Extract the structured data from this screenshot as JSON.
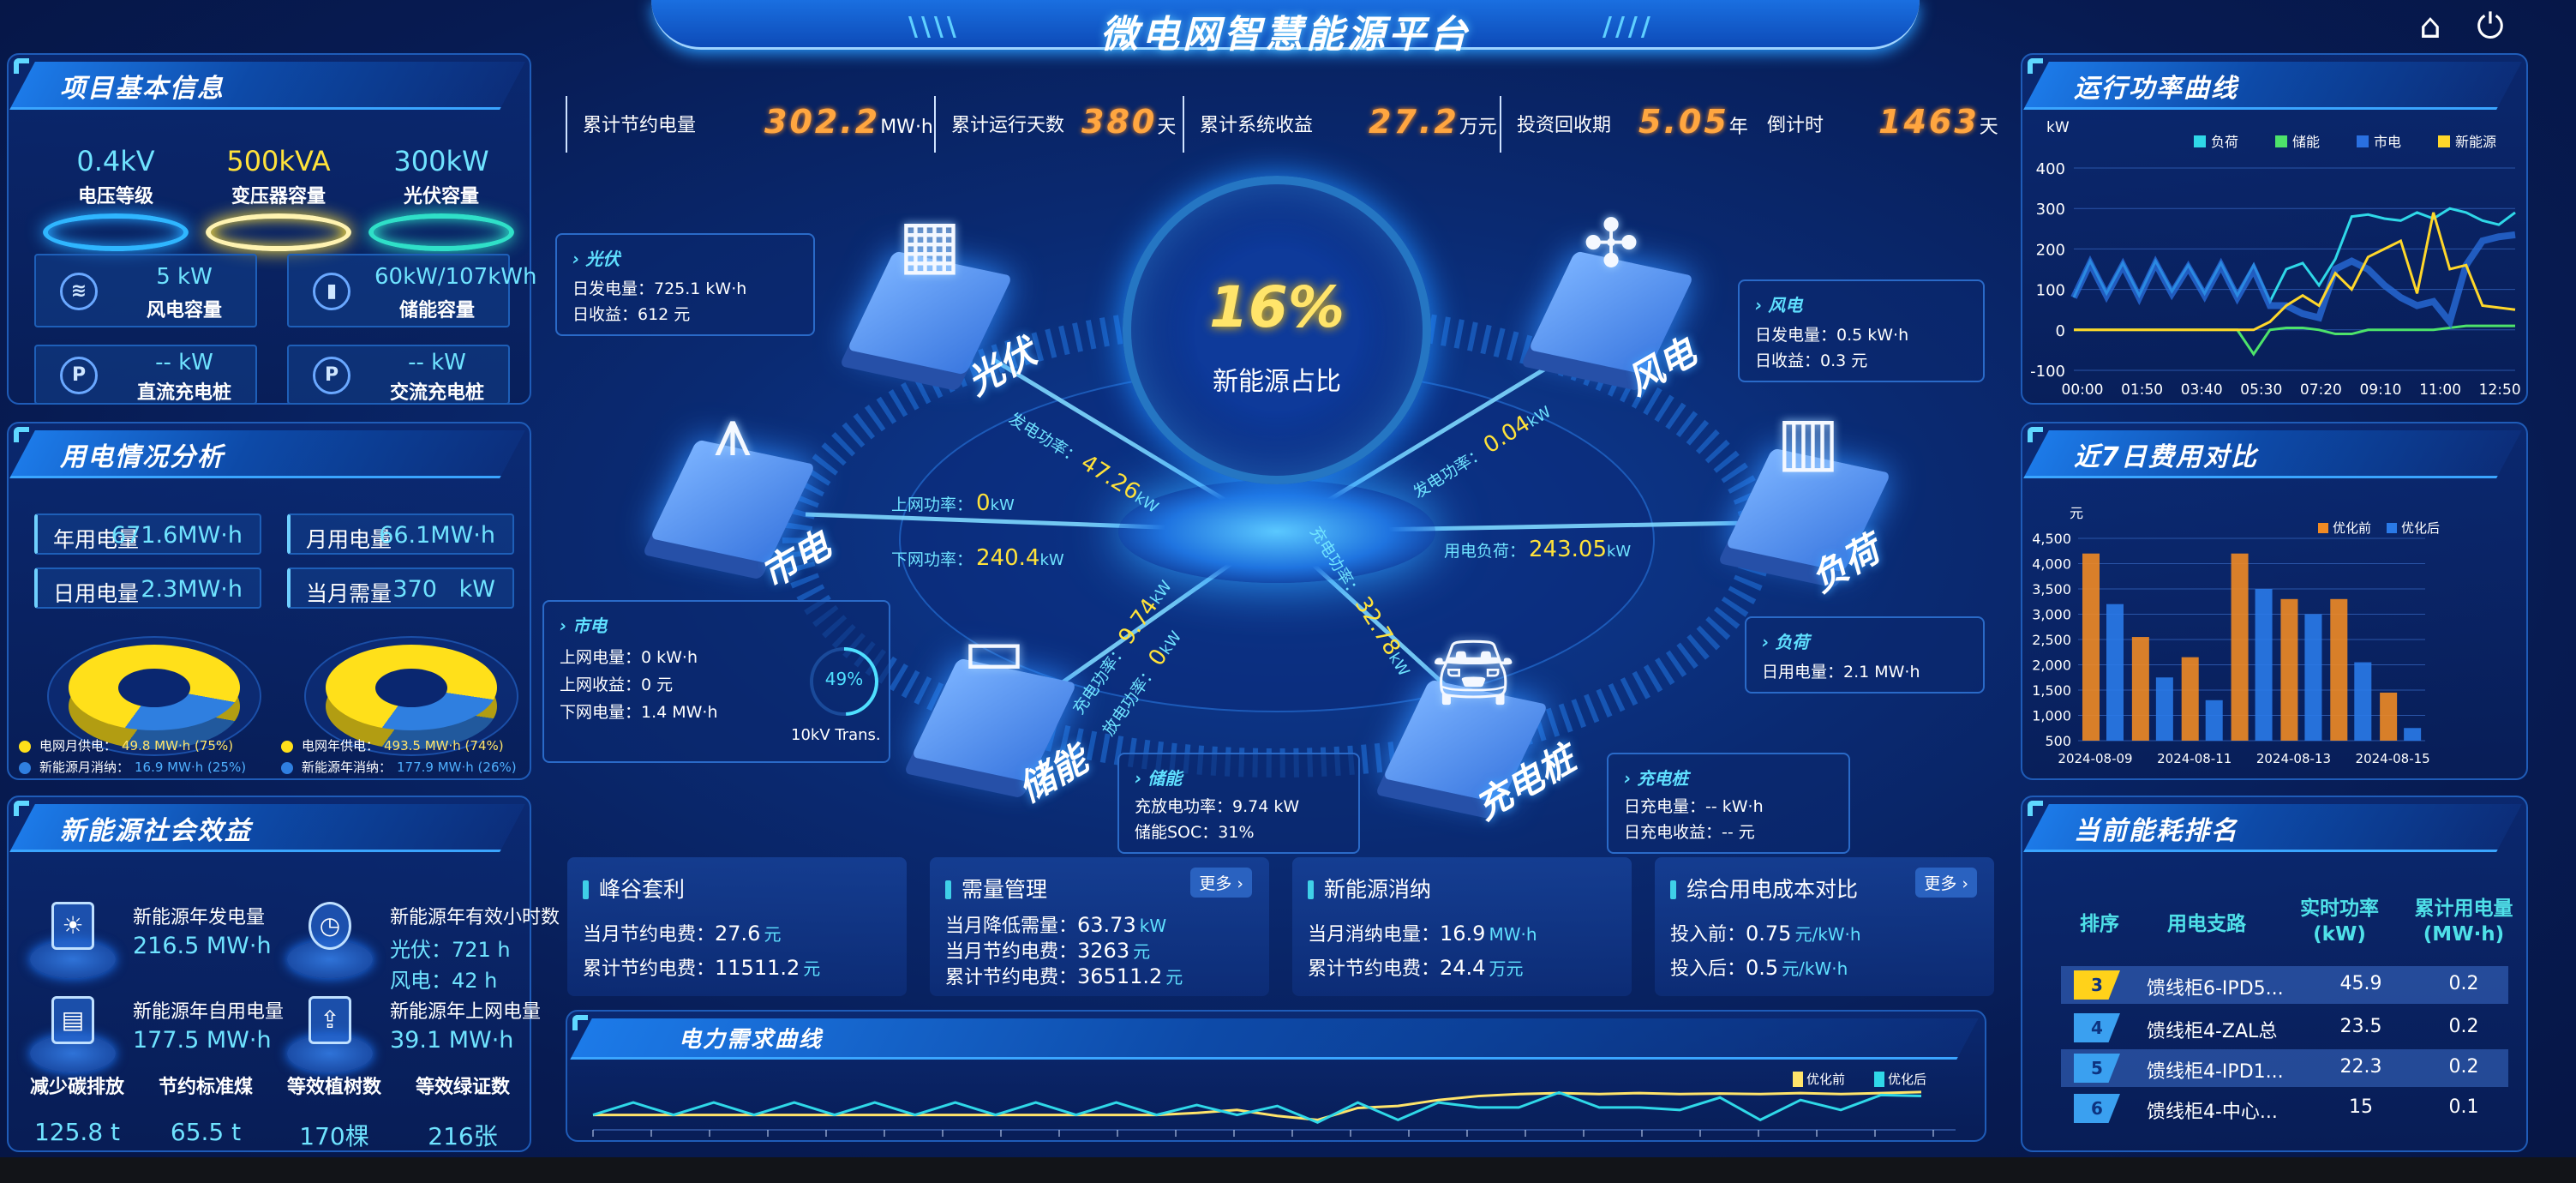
{
  "header": {
    "title": "微电网智慧能源平台",
    "home_icon": "home-icon",
    "power_icon": "power-icon"
  },
  "project_info": {
    "title": "项目基本信息",
    "capacities": [
      {
        "value": "0.4kV",
        "label": "电压等级",
        "color": "#2fb6ff"
      },
      {
        "value": "500kVA",
        "label": "变压器容量",
        "color": "#ffe23a"
      },
      {
        "value": "300kW",
        "label": "光伏容量",
        "color": "#2fe0c8"
      }
    ],
    "cells": [
      {
        "icon": "wind-icon",
        "value": "5 kW",
        "label": "风电容量"
      },
      {
        "icon": "battery-icon",
        "value": "60kW/107kWh",
        "label": "储能容量"
      },
      {
        "icon": "charger-icon",
        "value": "-- kW",
        "label": "直流充电桩"
      },
      {
        "icon": "charger-icon",
        "value": "-- kW",
        "label": "交流充电桩"
      }
    ]
  },
  "usage": {
    "title": "用电情况分析",
    "stats": [
      {
        "label": "年用电量",
        "value": "671.6MW·h"
      },
      {
        "label": "月用电量",
        "value": "66.1MW·h"
      },
      {
        "label": "日用电量",
        "value": "2.3MW·h"
      },
      {
        "label": "当月需量",
        "value": "370   kW"
      }
    ],
    "donuts": [
      {
        "slices": [
          {
            "label": "电网月供电：",
            "value": "49.8 MW·h (75%)",
            "pct": 75,
            "color": "#ffe01a"
          },
          {
            "label": "新能源月消纳：",
            "value": "16.9 MW·h (25%)",
            "pct": 25,
            "color": "#2f7fe0"
          }
        ]
      },
      {
        "slices": [
          {
            "label": "电网年供电：",
            "value": "493.5 MW·h (74%)",
            "pct": 74,
            "color": "#ffe01a"
          },
          {
            "label": "新能源年消纳：",
            "value": "177.9 MW·h (26%)",
            "pct": 26,
            "color": "#2f7fe0"
          }
        ]
      }
    ]
  },
  "social": {
    "title": "新能源社会效益",
    "items": [
      {
        "icon": "solar-panel-icon",
        "label": "新能源年发电量",
        "value": "216.5 MW·h"
      },
      {
        "icon": "clock-icon",
        "label": "新能源年有效小时数",
        "value": "光伏：721 h",
        "value2": "风电：42 h"
      },
      {
        "icon": "battery-icon",
        "label": "新能源年自用电量",
        "value": "177.5 MW·h"
      },
      {
        "icon": "grid-upload-icon",
        "label": "新能源年上网电量",
        "value": "39.1 MW·h"
      }
    ],
    "benefits": [
      {
        "label": "减少碳排放",
        "value": "125.8 t"
      },
      {
        "label": "节约标准煤",
        "value": "65.5 t"
      },
      {
        "label": "等效植树数",
        "value": "170棵"
      },
      {
        "label": "等效绿证数",
        "value": "216张"
      }
    ]
  },
  "stats": [
    {
      "label": "累计节约电量",
      "value": "302.2",
      "unit": "MW·h"
    },
    {
      "label": "累计运行天数",
      "value": "380",
      "unit": "天"
    },
    {
      "label": "累计系统收益",
      "value": "27.2",
      "unit": "万元"
    },
    {
      "label": "投资回收期",
      "value": "5.05",
      "unit": "年",
      "extra_label": "倒计时",
      "extra_value": "1463",
      "extra_unit": "天"
    }
  ],
  "topology": {
    "center": {
      "value": "16%",
      "label": "新能源占比"
    },
    "nodes": {
      "pv": "光伏",
      "wind": "风电",
      "grid": "市电",
      "load": "负荷",
      "storage": "储能",
      "charger": "充电桩"
    },
    "flows": {
      "pv": {
        "label": "发电功率：",
        "value": "47.26",
        "unit": "kW"
      },
      "wind": {
        "label": "发电功率：",
        "value": "0.04",
        "unit": "kW"
      },
      "grid_up": {
        "label": "上网功率：",
        "value": "0",
        "unit": "kW"
      },
      "grid_down": {
        "label": "下网功率：",
        "value": "240.4",
        "unit": "kW"
      },
      "load": {
        "label": "用电负荷：",
        "value": "243.05",
        "unit": "kW"
      },
      "storage_charge": {
        "label": "充电功率：",
        "value": "9.74",
        "unit": "kW"
      },
      "storage_discharge": {
        "label": "放电功率：",
        "value": "0",
        "unit": "kW"
      },
      "charger": {
        "label": "充电功率：",
        "value": "32.78",
        "unit": "kW"
      }
    },
    "boxes": {
      "pv": {
        "title": "光伏",
        "rows": [
          "日发电量：725.1 kW·h",
          "日收益：612 元"
        ]
      },
      "wind": {
        "title": "风电",
        "rows": [
          "日发电量：0.5 kW·h",
          "日收益：0.3 元"
        ]
      },
      "grid": {
        "title": "市电",
        "rows": [
          "上网电量：0 kW·h",
          "上网收益：0 元",
          "下网电量：1.4 MW·h"
        ],
        "gauge_value": "49%",
        "gauge_pct": 49,
        "gauge_label": "10kV Trans."
      },
      "load": {
        "title": "负荷",
        "rows": [
          "日用电量：2.1 MW·h"
        ]
      },
      "storage": {
        "title": "储能",
        "rows": [
          "充放电功率：9.74 kW",
          "储能SOC：31%"
        ]
      },
      "charger": {
        "title": "充电桩",
        "rows": [
          "日充电量：-- kW·h",
          "日充电收益：-- 元"
        ]
      }
    }
  },
  "cards": [
    {
      "title": "峰谷套利",
      "rows": [
        {
          "label": "当月节约电费：",
          "value": "27.6",
          "unit": "元"
        },
        {
          "label": "累计节约电费：",
          "value": "11511.2",
          "unit": "元"
        }
      ]
    },
    {
      "title": "需量管理",
      "more": "更多 ›",
      "rows": [
        {
          "label": "当月降低需量：",
          "value": "63.73",
          "unit": "kW"
        },
        {
          "label": "当月节约电费：",
          "value": "3263",
          "unit": "元"
        },
        {
          "label": "累计节约电费：",
          "value": "36511.2",
          "unit": "元"
        }
      ]
    },
    {
      "title": "新能源消纳",
      "rows": [
        {
          "label": "当月消纳电量：",
          "value": "16.9",
          "unit": "MW·h"
        },
        {
          "label": "累计节约电费：",
          "value": "24.4",
          "unit": "万元"
        }
      ]
    },
    {
      "title": "综合用电成本对比",
      "more": "更多 ›",
      "rows": [
        {
          "label": "投入前：",
          "value": "0.75",
          "unit": "元/kW·h"
        },
        {
          "label": "投入后：",
          "value": "0.5",
          "unit": "元/kW·h"
        }
      ]
    }
  ],
  "demand": {
    "title": "电力需求曲线"
  },
  "power_curve": {
    "title": "运行功率曲线"
  },
  "cost": {
    "title": "近7日费用对比"
  },
  "ranking": {
    "title": "当前能耗排名",
    "headers": [
      "排序",
      "用电支路",
      "实时功率\n(kW)",
      "累计用电量\n(MW·h)"
    ],
    "rows": [
      {
        "rank": "3",
        "name": "馈线柜6-IPD5...",
        "power": "45.9",
        "energy": "0.2",
        "highlight": true
      },
      {
        "rank": "4",
        "name": "馈线柜4-ZAL总",
        "power": "23.5",
        "energy": "0.2",
        "highlight": false
      },
      {
        "rank": "5",
        "name": "馈线柜4-IPD1...",
        "power": "22.3",
        "energy": "0.2",
        "highlight": true
      },
      {
        "rank": "6",
        "name": "馈线柜4-中心...",
        "power": "15",
        "energy": "0.1",
        "highlight": false
      }
    ]
  },
  "chart_data": [
    {
      "type": "line",
      "ylabel": "kW",
      "ylim": [
        -100,
        400
      ],
      "yticks": [
        400,
        300,
        200,
        100,
        0,
        -100
      ],
      "xticks": [
        "00:00",
        "01:50",
        "03:40",
        "05:30",
        "07:20",
        "09:10",
        "11:00",
        "12:50"
      ],
      "x": [
        "00:00",
        "00:30",
        "01:00",
        "01:30",
        "02:00",
        "02:30",
        "03:00",
        "03:30",
        "04:00",
        "04:30",
        "05:00",
        "05:30",
        "06:00",
        "06:30",
        "07:00",
        "07:30",
        "08:00",
        "08:30",
        "09:00",
        "09:30",
        "10:00",
        "10:30",
        "11:00",
        "11:30",
        "12:00",
        "12:30",
        "13:00",
        "13:30"
      ],
      "legend": "top-right",
      "grid": true,
      "series": [
        {
          "name": "负荷",
          "color": "#2fd8e8",
          "values": [
            80,
            170,
            90,
            165,
            85,
            170,
            95,
            160,
            90,
            165,
            85,
            160,
            70,
            150,
            165,
            110,
            175,
            280,
            285,
            275,
            270,
            290,
            275,
            300,
            290,
            270,
            260,
            290
          ]
        },
        {
          "name": "储能",
          "color": "#4de36a",
          "values": [
            0,
            0,
            0,
            0,
            0,
            0,
            0,
            0,
            0,
            0,
            0,
            -60,
            0,
            5,
            5,
            0,
            -10,
            -10,
            0,
            0,
            0,
            0,
            0,
            5,
            10,
            10,
            10,
            10
          ]
        },
        {
          "name": "市电",
          "color": "#2a70e0",
          "values": [
            80,
            165,
            85,
            160,
            80,
            165,
            90,
            155,
            85,
            160,
            80,
            150,
            60,
            60,
            40,
            30,
            150,
            170,
            150,
            110,
            80,
            60,
            70,
            20,
            160,
            220,
            230,
            235
          ]
        },
        {
          "name": "新能源",
          "color": "#ffd72a",
          "values": [
            0,
            0,
            0,
            0,
            0,
            0,
            0,
            0,
            0,
            0,
            0,
            0,
            20,
            60,
            85,
            60,
            140,
            100,
            180,
            200,
            220,
            90,
            290,
            150,
            160,
            60,
            55,
            50
          ]
        }
      ]
    },
    {
      "type": "bar",
      "ylabel": "元",
      "ylim": [
        500,
        4500
      ],
      "yticks": [
        4500,
        4000,
        3500,
        3000,
        2500,
        2000,
        1500,
        1000,
        500
      ],
      "categories": [
        "2024-08-09",
        "2024-08-10",
        "2024-08-11",
        "2024-08-12",
        "2024-08-13",
        "2024-08-14",
        "2024-08-15"
      ],
      "xticks": [
        "2024-08-09",
        "2024-08-11",
        "2024-08-13",
        "2024-08-15"
      ],
      "legend": "top-right",
      "grid": true,
      "series": [
        {
          "name": "优化前",
          "color": "#f08a24",
          "values": [
            4200,
            2550,
            2150,
            4200,
            3300,
            3300,
            1450
          ]
        },
        {
          "name": "优化后",
          "color": "#2a7ae8",
          "values": [
            3200,
            1750,
            1300,
            3500,
            3000,
            2050,
            750
          ]
        }
      ]
    },
    {
      "type": "line",
      "legend": "top-right",
      "series": [
        {
          "name": "优化前",
          "color": "#ffe46a",
          "values": [
            30,
            30,
            30,
            30,
            30,
            30,
            30,
            30,
            30,
            30,
            30,
            30,
            30,
            30,
            30,
            34,
            40,
            28,
            20,
            44,
            48,
            60,
            68,
            72,
            74,
            72,
            74,
            72,
            73,
            72,
            74,
            72,
            74,
            76
          ]
        },
        {
          "name": "优化后",
          "color": "#2fd8e8",
          "values": [
            30,
            55,
            30,
            55,
            30,
            55,
            30,
            55,
            30,
            55,
            30,
            55,
            30,
            55,
            30,
            50,
            30,
            48,
            15,
            55,
            20,
            55,
            45,
            45,
            75,
            45,
            45,
            40,
            65,
            20,
            60,
            40,
            70,
            68
          ]
        }
      ]
    }
  ]
}
